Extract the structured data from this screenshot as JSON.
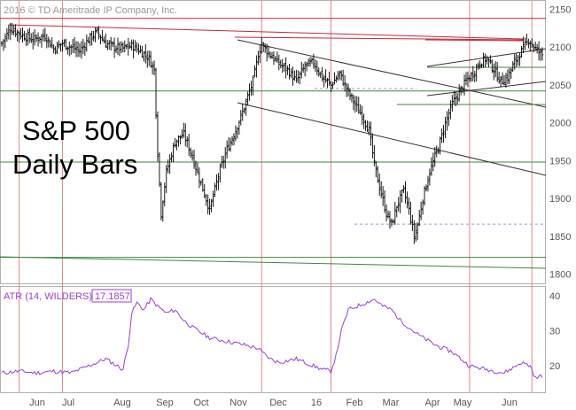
{
  "copyright": "2016 © TD Ameritrade IP Company, Inc.",
  "title_line1": "S&P 500",
  "title_line2": "Daily Bars",
  "atr": {
    "label": "ATR (14, WILDERS)",
    "value": "17.1857"
  },
  "months": [
    "Jun",
    "Jul",
    "Aug",
    "Sep",
    "Oct",
    "Nov",
    "Dec",
    "16",
    "Feb",
    "Mar",
    "Apr",
    "May",
    "Jun"
  ],
  "colors": {
    "price": "#000000",
    "atr": "#9b3fd6",
    "resistance": "#c8283a",
    "support": "#3a8a3a",
    "event_marker": "#e08a8a",
    "dashed": "#b98ad8"
  },
  "chart_data": [
    {
      "type": "ohlc",
      "title": "S&P 500 Daily Bars",
      "x_categories": [
        "Jun",
        "Jul",
        "Aug",
        "Sep",
        "Oct",
        "Nov",
        "Dec",
        "16",
        "Feb",
        "Mar",
        "Apr",
        "May",
        "Jun"
      ],
      "ylim": [
        1790,
        2160
      ],
      "y_ticks": [
        1800,
        1850,
        1900,
        1950,
        2000,
        2050,
        2100,
        2150
      ],
      "close_path": [
        [
          0,
          2105
        ],
        [
          5,
          2125
        ],
        [
          10,
          2118
        ],
        [
          18,
          2110
        ],
        [
          25,
          2115
        ],
        [
          30,
          2098
        ],
        [
          35,
          2105
        ],
        [
          40,
          2100
        ],
        [
          45,
          2095
        ],
        [
          50,
          2110
        ],
        [
          55,
          2120
        ],
        [
          60,
          2105
        ],
        [
          65,
          2100
        ],
        [
          70,
          2098
        ],
        [
          75,
          2102
        ],
        [
          80,
          2095
        ],
        [
          85,
          2085
        ],
        [
          88,
          2070
        ],
        [
          90,
          1960
        ],
        [
          92,
          1880
        ],
        [
          95,
          1935
        ],
        [
          100,
          1975
        ],
        [
          105,
          1985
        ],
        [
          110,
          1955
        ],
        [
          115,
          1920
        ],
        [
          120,
          1885
        ],
        [
          125,
          1930
        ],
        [
          130,
          1965
        ],
        [
          135,
          1990
        ],
        [
          140,
          2020
        ],
        [
          145,
          2055
        ],
        [
          148,
          2090
        ],
        [
          150,
          2105
        ],
        [
          153,
          2095
        ],
        [
          157,
          2085
        ],
        [
          160,
          2078
        ],
        [
          165,
          2070
        ],
        [
          170,
          2055
        ],
        [
          175,
          2075
        ],
        [
          180,
          2080
        ],
        [
          185,
          2060
        ],
        [
          190,
          2050
        ],
        [
          195,
          2065
        ],
        [
          200,
          2040
        ],
        [
          205,
          2020
        ],
        [
          208,
          2010
        ],
        [
          212,
          1990
        ],
        [
          215,
          1945
        ],
        [
          218,
          1915
        ],
        [
          222,
          1880
        ],
        [
          225,
          1865
        ],
        [
          228,
          1890
        ],
        [
          232,
          1910
        ],
        [
          235,
          1885
        ],
        [
          238,
          1850
        ],
        [
          240,
          1865
        ],
        [
          243,
          1900
        ],
        [
          247,
          1935
        ],
        [
          250,
          1955
        ],
        [
          253,
          1975
        ],
        [
          256,
          2000
        ],
        [
          260,
          2025
        ],
        [
          264,
          2040
        ],
        [
          268,
          2055
        ],
        [
          272,
          2065
        ],
        [
          276,
          2080
        ],
        [
          280,
          2085
        ],
        [
          284,
          2070
        ],
        [
          288,
          2055
        ],
        [
          292,
          2060
        ],
        [
          296,
          2080
        ],
        [
          300,
          2095
        ],
        [
          304,
          2110
        ],
        [
          308,
          2098
        ],
        [
          312,
          2090
        ]
      ],
      "horizontal_lines": [
        {
          "y": 2138,
          "color": "resistance"
        },
        {
          "y": 2042,
          "color": "support"
        },
        {
          "y": 1948,
          "color": "support"
        },
        {
          "y": 1866,
          "color": "dashed"
        },
        {
          "y": 1822,
          "color": "support"
        }
      ],
      "event_markers_x": [
        10,
        35,
        150,
        190,
        270,
        306
      ]
    },
    {
      "type": "line",
      "series": [
        {
          "name": "ATR (14, WILDERS)",
          "last": 17.1857
        }
      ],
      "ylim": [
        13,
        42
      ],
      "y_ticks": [
        20,
        30,
        40
      ],
      "x": [
        0,
        10,
        20,
        30,
        40,
        50,
        60,
        70,
        73,
        75,
        78,
        82,
        86,
        90,
        95,
        100,
        105,
        110,
        120,
        130,
        140,
        148,
        150,
        155,
        160,
        170,
        175,
        180,
        185,
        190,
        193,
        196,
        200,
        210,
        215,
        220,
        225,
        230,
        240,
        250,
        260,
        270,
        280,
        290,
        300,
        305,
        308,
        312
      ],
      "y": [
        18,
        18.5,
        18,
        18.5,
        18,
        20,
        22,
        19,
        26,
        35,
        38,
        36,
        39,
        37,
        35,
        36,
        33,
        31,
        28,
        27,
        26,
        25,
        24,
        22,
        21,
        22,
        21,
        20,
        19,
        18.5,
        23,
        30,
        36,
        38,
        39,
        37,
        36,
        33,
        29,
        26,
        24,
        20,
        19,
        18,
        21,
        20,
        16.5,
        17.2
      ]
    }
  ]
}
